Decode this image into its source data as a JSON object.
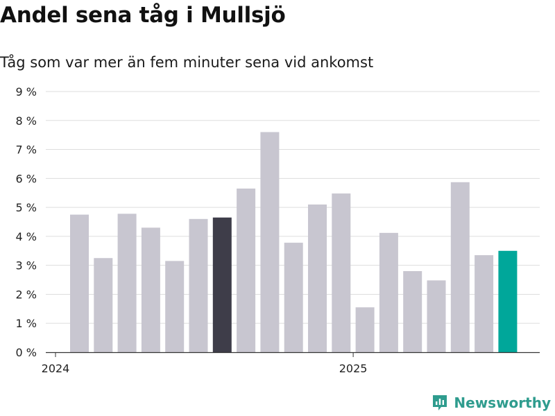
{
  "title": "Andel sena tåg i Mullsjö",
  "subtitle": "Tåg som var mer än fem minuter sena vid ankomst",
  "brand": "Newsworthy",
  "colors": {
    "default": "#c8c6d0",
    "highlight_dark": "#3e3d49",
    "highlight_accent": "#00a79a",
    "grid": "#dddddd",
    "axis": "#333333"
  },
  "chart_data": {
    "type": "bar",
    "title": "Andel sena tåg i Mullsjö",
    "subtitle": "Tåg som var mer än fem minuter sena vid ankomst",
    "ylim": [
      0,
      9
    ],
    "y_ticks": [
      {
        "value": 0,
        "label": "0 %"
      },
      {
        "value": 1,
        "label": "1 %"
      },
      {
        "value": 2,
        "label": "2 %"
      },
      {
        "value": 3,
        "label": "3 %"
      },
      {
        "value": 4,
        "label": "4 %"
      },
      {
        "value": 5,
        "label": "5 %"
      },
      {
        "value": 6,
        "label": "6 %"
      },
      {
        "value": 7,
        "label": "7 %"
      },
      {
        "value": 8,
        "label": "8 %"
      },
      {
        "value": 9,
        "label": "9 %"
      }
    ],
    "x_ticks": [
      {
        "index": 0,
        "label": "2024"
      },
      {
        "index": 12,
        "label": "2025"
      }
    ],
    "grid": true,
    "bars": [
      {
        "period": "2024-01",
        "value": 4.75,
        "style": "default"
      },
      {
        "period": "2024-02",
        "value": 3.25,
        "style": "default"
      },
      {
        "period": "2024-03",
        "value": 4.78,
        "style": "default"
      },
      {
        "period": "2024-04",
        "value": 4.3,
        "style": "default"
      },
      {
        "period": "2024-05",
        "value": 3.15,
        "style": "default"
      },
      {
        "period": "2024-06",
        "value": 4.6,
        "style": "default"
      },
      {
        "period": "2024-07",
        "value": 4.65,
        "style": "highlight_dark"
      },
      {
        "period": "2024-08",
        "value": 5.65,
        "style": "default"
      },
      {
        "period": "2024-09",
        "value": 7.6,
        "style": "default"
      },
      {
        "period": "2024-10",
        "value": 3.78,
        "style": "default"
      },
      {
        "period": "2024-11",
        "value": 5.1,
        "style": "default"
      },
      {
        "period": "2024-12",
        "value": 5.48,
        "style": "default"
      },
      {
        "period": "2025-01",
        "value": 1.55,
        "style": "default"
      },
      {
        "period": "2025-02",
        "value": 4.12,
        "style": "default"
      },
      {
        "period": "2025-03",
        "value": 2.8,
        "style": "default"
      },
      {
        "period": "2025-04",
        "value": 2.48,
        "style": "default"
      },
      {
        "period": "2025-05",
        "value": 5.87,
        "style": "default"
      },
      {
        "period": "2025-06",
        "value": 3.35,
        "style": "default"
      },
      {
        "period": "2025-07",
        "value": 3.5,
        "style": "highlight_accent"
      }
    ]
  }
}
